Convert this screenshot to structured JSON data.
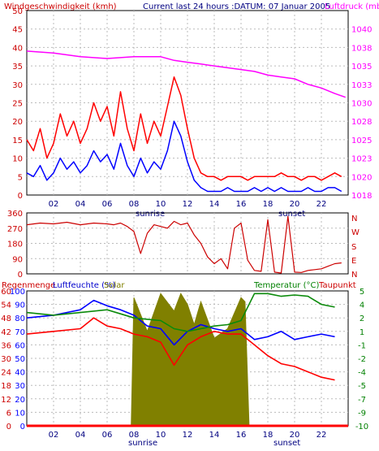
{
  "header": {
    "wind_title": "Windgeschwindigkeit (kmh)",
    "current_label": "Current last 24 hours :DATUM: 07 Januar 2005",
    "pressure_title": "Luftdruck (mb)"
  },
  "wind_direction_labels": [
    "N",
    "W",
    "S",
    "E",
    "N"
  ],
  "bottom_titles": {
    "rain": "Regenmenge",
    "humidity": "Luftfeuchte (%)",
    "solar": "Solar",
    "temperature": "Temperatur (°C)",
    "dewpoint": "Taupunkt"
  },
  "sun_labels": {
    "sunrise": "sunrise",
    "sunset": "sunset"
  },
  "colors": {
    "background": "#ffffff",
    "frame": "#000000",
    "left_axis_text": "#cc0000",
    "pressure": "#ff00ff",
    "wind_gust": "#ff0000",
    "wind_avg": "#0000ff",
    "direction": "#cc0000",
    "humidity": "#0000ff",
    "temperature_text": "#008000",
    "temperature": "#0a8a0a",
    "dewpoint": "#ff0000",
    "solar": "#808000",
    "rain": "#ff0000",
    "grid": "#bbbbbb",
    "tick_text": "#000080"
  },
  "chart_data": [
    {
      "type": "line",
      "hours": [
        "02",
        "04",
        "06",
        "08",
        "10",
        "12",
        "14",
        "16",
        "18",
        "20",
        "22"
      ],
      "xlim": [
        0,
        24
      ],
      "ylim": [
        0,
        50
      ],
      "yticks": [
        0,
        5,
        10,
        15,
        20,
        25,
        30,
        35,
        40,
        45,
        50
      ],
      "y2ticks": [
        "1018",
        "1020",
        "1023",
        "1025",
        "1028",
        "1030",
        "1033",
        "1035",
        "1038",
        "1040"
      ],
      "series": [
        {
          "name": "Windgeschwindigkeit (kmh)",
          "x": [
            0,
            0.5,
            1,
            1.5,
            2,
            2.5,
            3,
            3.5,
            4,
            4.5,
            5,
            5.5,
            6,
            6.5,
            7,
            7.5,
            8,
            8.5,
            9,
            9.5,
            10,
            10.5,
            11,
            11.5,
            12,
            12.5,
            13,
            13.5,
            14,
            14.5,
            15,
            15.5,
            16,
            16.5,
            17,
            17.5,
            18,
            18.5,
            19,
            19.5,
            20,
            20.5,
            21,
            21.5,
            22,
            22.5,
            23,
            23.5
          ],
          "y": [
            15,
            12,
            18,
            10,
            14,
            22,
            16,
            20,
            14,
            18,
            25,
            20,
            24,
            16,
            28,
            18,
            12,
            22,
            14,
            20,
            16,
            24,
            32,
            27,
            18,
            10,
            6,
            5,
            5,
            4,
            5,
            5,
            5,
            4,
            5,
            5,
            5,
            5,
            6,
            5,
            5,
            4,
            5,
            5,
            4,
            5,
            6,
            5
          ]
        },
        {
          "name": "Wind average",
          "x": [
            0,
            0.5,
            1,
            1.5,
            2,
            2.5,
            3,
            3.5,
            4,
            4.5,
            5,
            5.5,
            6,
            6.5,
            7,
            7.5,
            8,
            8.5,
            9,
            9.5,
            10,
            10.5,
            11,
            11.5,
            12,
            12.5,
            13,
            13.5,
            14,
            14.5,
            15,
            15.5,
            16,
            16.5,
            17,
            17.5,
            18,
            18.5,
            19,
            19.5,
            20,
            20.5,
            21,
            21.5,
            22,
            22.5,
            23,
            23.5
          ],
          "y": [
            6,
            5,
            8,
            4,
            6,
            10,
            7,
            9,
            6,
            8,
            12,
            9,
            11,
            7,
            14,
            8,
            5,
            10,
            6,
            9,
            7,
            12,
            20,
            16,
            9,
            4,
            2,
            1,
            1,
            1,
            2,
            1,
            1,
            1,
            2,
            1,
            2,
            1,
            2,
            1,
            1,
            1,
            2,
            1,
            1,
            2,
            2,
            1
          ]
        },
        {
          "name": "Luftdruck (mb)",
          "x": [
            0,
            2,
            4,
            6,
            8,
            10,
            11,
            12,
            13,
            14,
            15,
            16,
            17,
            18,
            19,
            20,
            21,
            22,
            23,
            23.8
          ],
          "y": [
            39,
            38.5,
            37.5,
            37,
            37.5,
            37.5,
            36.5,
            36,
            35.5,
            35,
            34.5,
            34,
            33.5,
            32.5,
            32,
            31.5,
            30,
            29,
            27.5,
            26.5
          ]
        }
      ]
    },
    {
      "type": "line",
      "xlim": [
        0,
        24
      ],
      "ylim": [
        0,
        360
      ],
      "yticks": [
        0,
        90,
        180,
        270,
        360
      ],
      "series": [
        {
          "name": "Windrichtung",
          "x": [
            0,
            1,
            2,
            3,
            4,
            5,
            6,
            6.5,
            7,
            7.5,
            8,
            8.5,
            9,
            9.5,
            10,
            10.5,
            11,
            11.5,
            12,
            12.5,
            13,
            13.5,
            14,
            14.5,
            15,
            15.5,
            16,
            16.5,
            17,
            17.5,
            18,
            18.5,
            19,
            19.5,
            20,
            20.5,
            21,
            21.5,
            22,
            22.5,
            23,
            23.5
          ],
          "y": [
            290,
            300,
            295,
            305,
            290,
            300,
            295,
            290,
            300,
            280,
            250,
            120,
            240,
            290,
            280,
            270,
            310,
            290,
            300,
            230,
            180,
            100,
            60,
            90,
            30,
            270,
            300,
            80,
            20,
            15,
            320,
            10,
            5,
            340,
            10,
            8,
            20,
            25,
            30,
            45,
            60,
            65
          ]
        }
      ]
    },
    {
      "type": "area",
      "xlim": [
        0,
        24
      ],
      "ylim": [
        0,
        100
      ],
      "yticks": [
        0,
        10,
        20,
        30,
        40,
        50,
        60,
        70,
        80,
        90,
        100
      ],
      "y_rain_ticks": [
        "0",
        "6",
        "12",
        "18",
        "24",
        "30",
        "36",
        "42",
        "48",
        "54",
        "60"
      ],
      "y_right_ticks": [
        "-10",
        "-9",
        "-7",
        "-5",
        "-4",
        "-2",
        "-1",
        "1",
        "2",
        "4",
        "5"
      ],
      "series": [
        {
          "name": "Luftfeuchte (%)",
          "x": [
            0,
            2,
            4,
            5,
            6,
            7,
            8,
            9,
            10,
            11,
            12,
            13,
            14,
            15,
            16,
            17,
            18,
            19,
            20,
            21,
            22,
            23
          ],
          "y": [
            80,
            82,
            86,
            93,
            89,
            86,
            82,
            74,
            72,
            60,
            70,
            75,
            72,
            70,
            72,
            64,
            66,
            70,
            64,
            66,
            68,
            66
          ]
        },
        {
          "name": "Temperatur (°C)",
          "x": [
            0,
            2,
            4,
            6,
            7,
            8,
            9,
            10,
            11,
            12,
            13,
            14,
            15,
            16,
            17,
            18,
            19,
            20,
            21,
            22,
            23
          ],
          "y": [
            84,
            82,
            84,
            86,
            83,
            80,
            79,
            78,
            72,
            70,
            72,
            74,
            75,
            78,
            98,
            98,
            96,
            97,
            96,
            90,
            88
          ]
        },
        {
          "name": "Taupunkt",
          "x": [
            0,
            2,
            4,
            5,
            6,
            7,
            8,
            9,
            10,
            11,
            12,
            13,
            14,
            15,
            16,
            17,
            18,
            19,
            20,
            21,
            22,
            23
          ],
          "y": [
            68,
            70,
            72,
            80,
            74,
            72,
            68,
            66,
            62,
            45,
            60,
            66,
            70,
            68,
            68,
            60,
            52,
            46,
            44,
            40,
            36,
            34
          ]
        },
        {
          "name": "Solar",
          "x": [
            7.8,
            8,
            9,
            10,
            11,
            11.5,
            12,
            12.5,
            13,
            14,
            15,
            16,
            16.3,
            16.6
          ],
          "y": [
            0,
            95,
            70,
            98,
            85,
            98,
            90,
            75,
            92,
            65,
            72,
            95,
            92,
            0
          ]
        },
        {
          "name": "Regenmenge",
          "x": [
            0,
            24
          ],
          "y": [
            0,
            0
          ]
        }
      ]
    }
  ]
}
